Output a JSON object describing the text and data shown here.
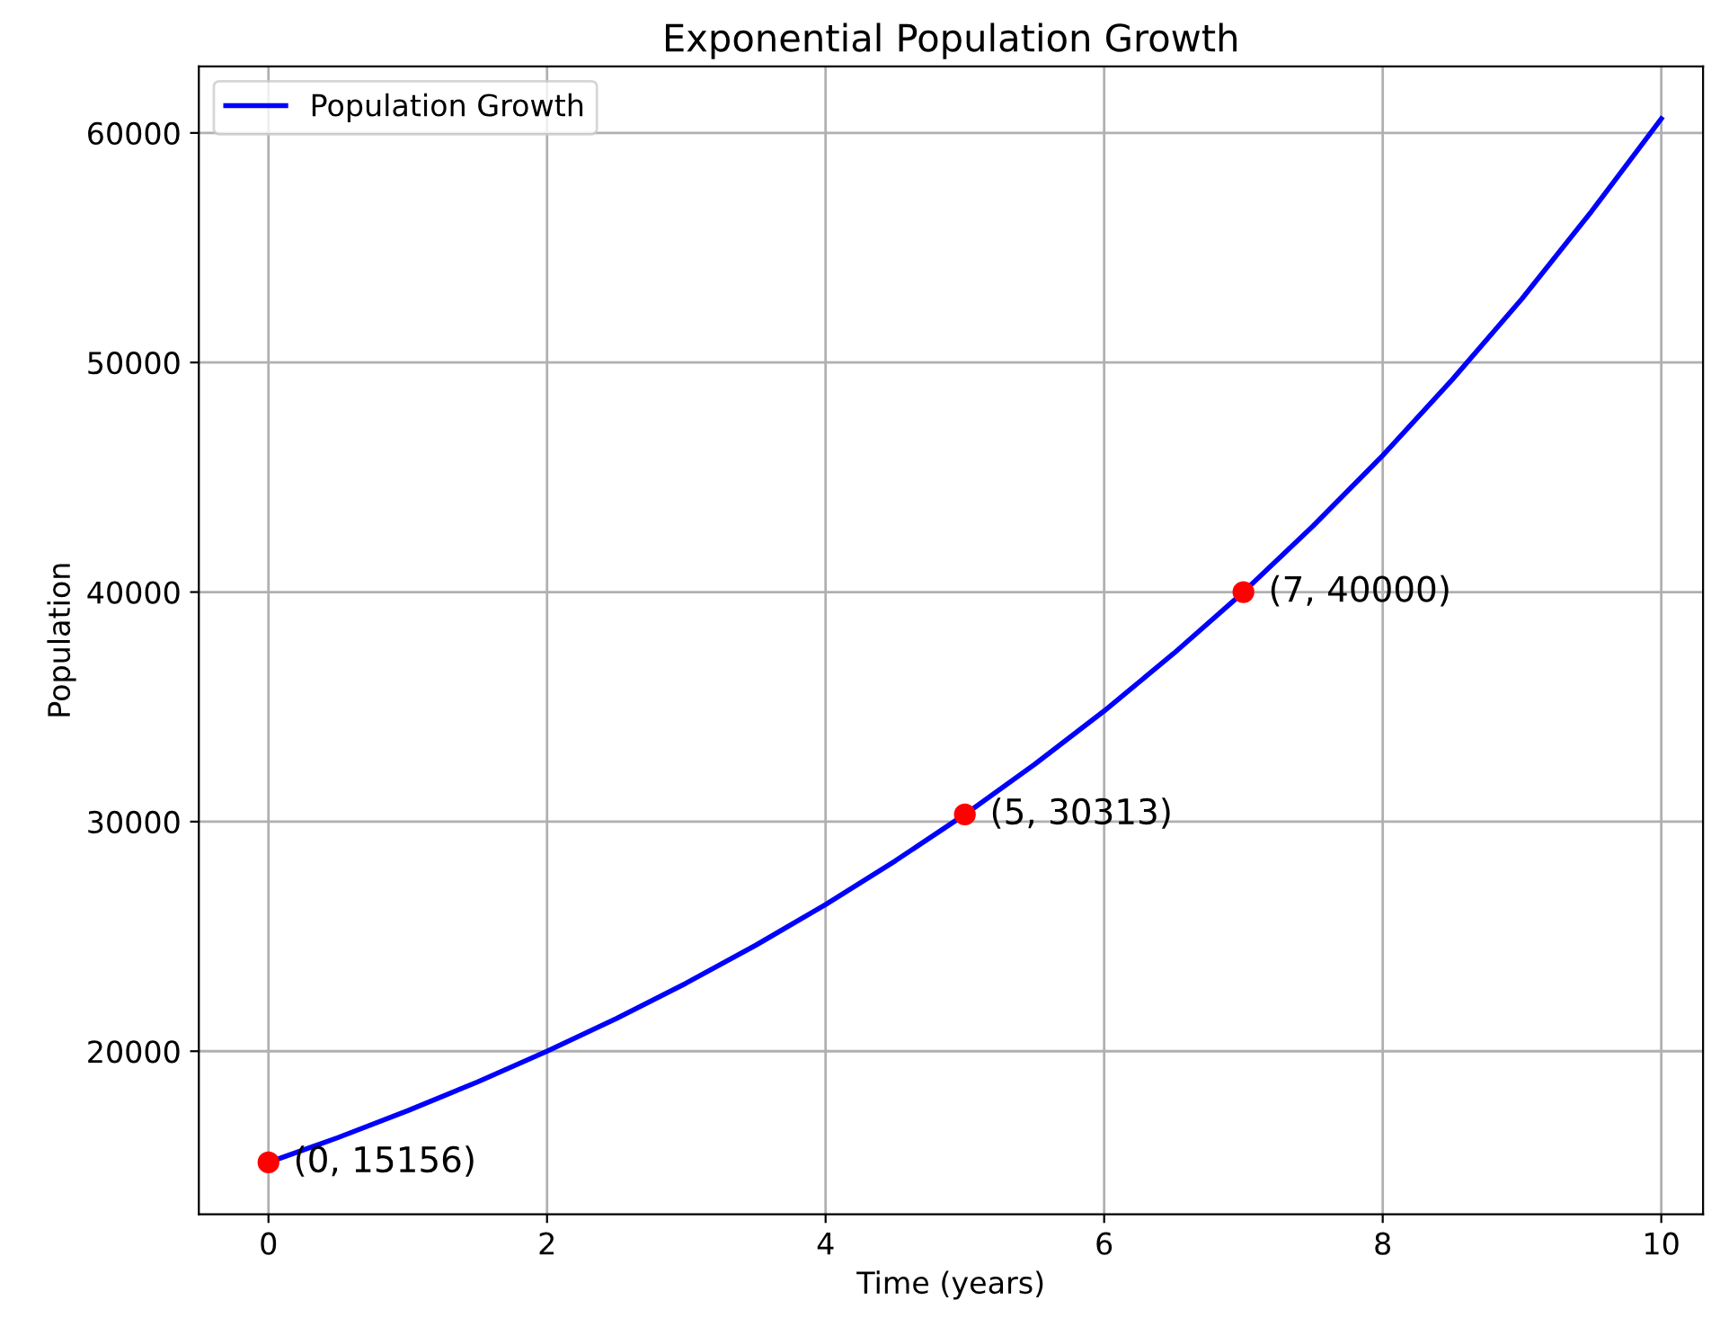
{
  "chart_data": {
    "type": "line",
    "title": "Exponential Population Growth",
    "xlabel": "Time (years)",
    "ylabel": "Population",
    "series": [
      {
        "name": "Population Growth",
        "color": "#0000ff",
        "marker": "none",
        "x": [
          0,
          0.5,
          1,
          1.5,
          2,
          2.5,
          3,
          3.5,
          4,
          4.5,
          5,
          5.5,
          6,
          6.5,
          7,
          7.5,
          8,
          8.5,
          9,
          9.5,
          10
        ],
        "values": [
          15156,
          16240,
          17410,
          18660,
          20000,
          21430,
          22970,
          24620,
          26390,
          28290,
          30313,
          32490,
          34820,
          37330,
          40000,
          42880,
          45950,
          49260,
          52780,
          56590,
          60620
        ]
      },
      {
        "type": "scatter",
        "color": "#ff0000",
        "marker": "circle",
        "x": [
          0,
          5,
          7
        ],
        "values": [
          15156,
          30313,
          40000
        ]
      }
    ],
    "annotations": [
      {
        "text": "(0, 15156)",
        "x": 0,
        "y": 15156
      },
      {
        "text": "(5, 30313)",
        "x": 5,
        "y": 30313
      },
      {
        "text": "(7, 40000)",
        "x": 7,
        "y": 40000
      }
    ],
    "xlim": [
      -0.5,
      10.3
    ],
    "ylim": [
      12900,
      62900
    ],
    "xticks": [
      0,
      2,
      4,
      6,
      8,
      10
    ],
    "yticks": [
      20000,
      30000,
      40000,
      50000,
      60000
    ],
    "grid": true,
    "legend": "top left"
  }
}
